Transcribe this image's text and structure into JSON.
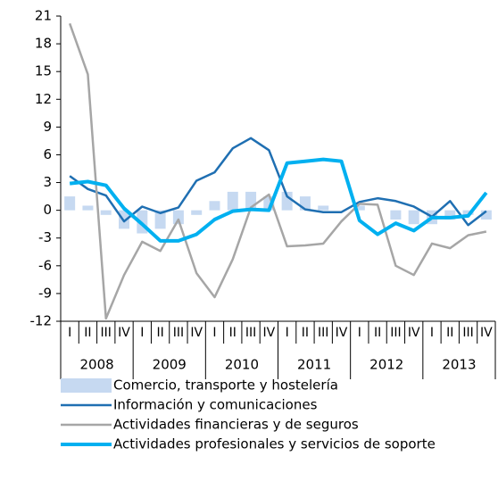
{
  "chart_data": {
    "type": "line",
    "categories": [
      "I",
      "II",
      "III",
      "IV",
      "I",
      "II",
      "III",
      "IV",
      "I",
      "II",
      "III",
      "IV",
      "I",
      "II",
      "III",
      "IV",
      "I",
      "II",
      "III",
      "IV",
      "I",
      "II",
      "III",
      "IV"
    ],
    "groups": [
      "2008",
      "2009",
      "2010",
      "2011",
      "2012",
      "2013"
    ],
    "ylim": [
      -12,
      21
    ],
    "yticks": [
      -12,
      -9,
      -6,
      -3,
      0,
      3,
      6,
      9,
      12,
      15,
      18,
      21
    ],
    "series": [
      {
        "name": "Comercio, transporte y hostelería",
        "type": "bar",
        "color": "#c6d9f1",
        "values": [
          1.5,
          0.5,
          -0.5,
          -2.0,
          -2.5,
          -2.0,
          -1.5,
          -0.5,
          1.0,
          2.0,
          2.0,
          1.5,
          2.0,
          1.5,
          0.5,
          0.0,
          0.5,
          0.0,
          -1.0,
          -1.5,
          -1.5,
          -1.0,
          -0.5,
          -1.0
        ]
      },
      {
        "name": "Información y comunicaciones",
        "type": "line",
        "color": "#1f6fb2",
        "values": [
          3.7,
          2.3,
          1.6,
          -1.2,
          0.4,
          -0.3,
          0.3,
          3.2,
          4.1,
          6.7,
          7.8,
          6.5,
          1.5,
          0.1,
          -0.2,
          -0.2,
          0.9,
          1.3,
          1.0,
          0.4,
          -0.7,
          1.0,
          -1.6,
          -0.1
        ]
      },
      {
        "name": "Actividades financieras y de seguros",
        "type": "line",
        "color": "#a6a6a6",
        "values": [
          20.2,
          14.7,
          -11.7,
          -7.0,
          -3.4,
          -4.4,
          -1.0,
          -6.8,
          -9.4,
          -5.3,
          0.3,
          1.7,
          -3.9,
          -3.8,
          -3.6,
          -1.2,
          0.7,
          0.6,
          -6.0,
          -7.0,
          -3.6,
          -4.1,
          -2.7,
          -2.3
        ]
      },
      {
        "name": "Actividades profesionales y servicios de soporte",
        "type": "line",
        "color": "#00b0f0",
        "values": [
          2.9,
          3.1,
          2.7,
          0.2,
          -1.5,
          -3.3,
          -3.3,
          -2.6,
          -1.0,
          -0.1,
          0.1,
          0.0,
          5.1,
          5.3,
          5.5,
          5.3,
          -1.1,
          -2.6,
          -1.4,
          -2.2,
          -0.8,
          -0.8,
          -0.6,
          1.9
        ]
      }
    ]
  }
}
